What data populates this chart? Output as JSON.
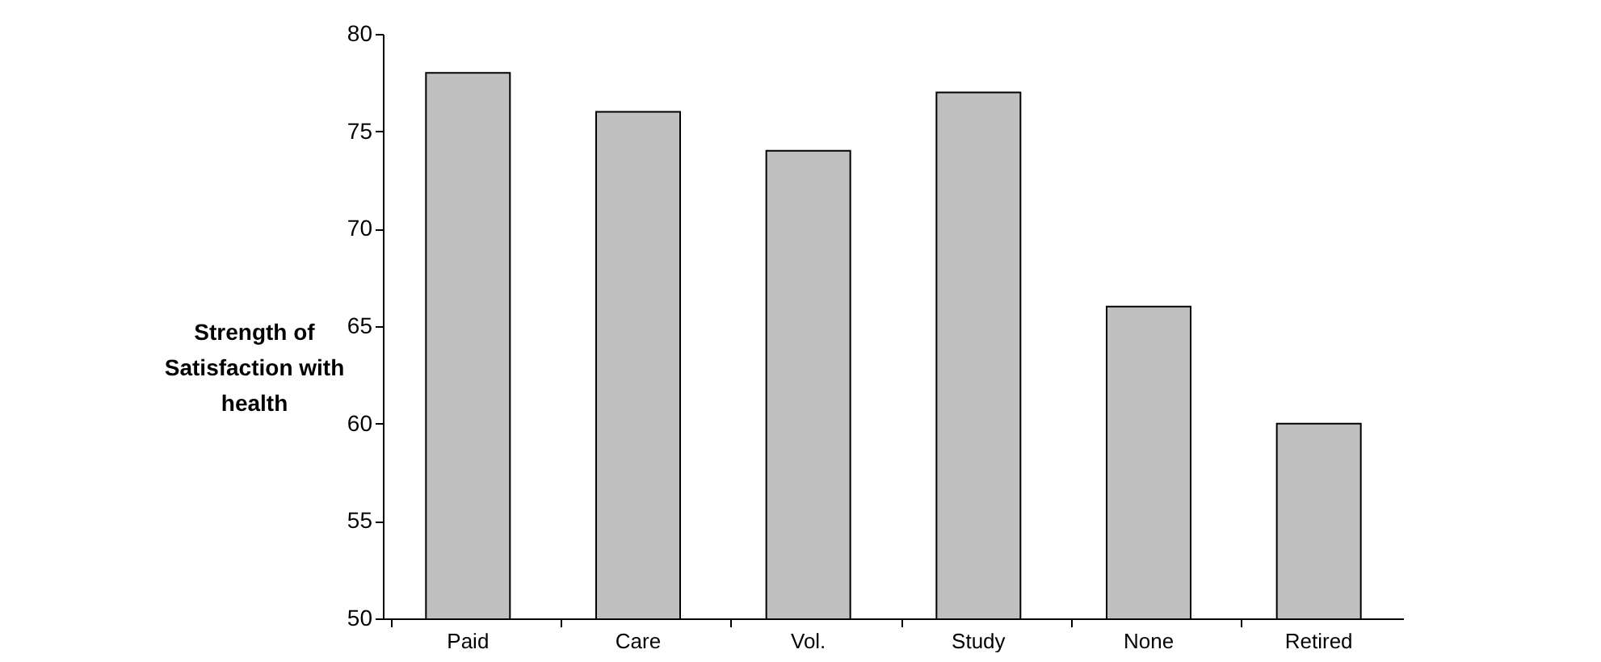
{
  "chart_data": {
    "type": "bar",
    "ylabel": "Strength of Satisfaction with health",
    "categories": [
      "Paid",
      "Care",
      "Vol.",
      "Study",
      "None",
      "Retired"
    ],
    "values": [
      78,
      76,
      74,
      77,
      66,
      60
    ],
    "color": "#c0c0c0",
    "ylim": [
      50,
      80
    ],
    "yticks": [
      50,
      55,
      60,
      65,
      70,
      75,
      80
    ],
    "grid": false
  }
}
